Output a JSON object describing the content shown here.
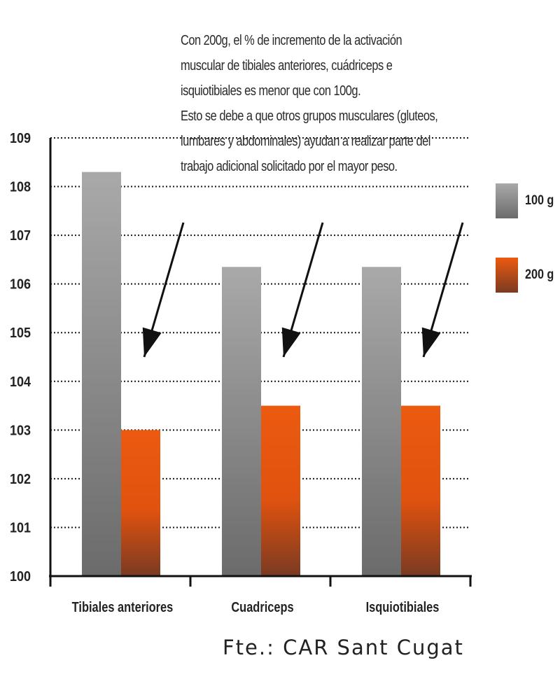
{
  "chart_data": {
    "type": "bar",
    "categories": [
      "Tibiales anteriores",
      "Cuadriceps",
      "Isquiotibiales"
    ],
    "series": [
      {
        "name": "100 g",
        "values": [
          108.3,
          106.35,
          106.35
        ],
        "color": "#8c8c8c"
      },
      {
        "name": "200 g",
        "values": [
          103.0,
          103.5,
          103.5
        ],
        "color": "#e8581a"
      }
    ],
    "ylim": [
      100,
      109
    ],
    "yticks": [
      100,
      101,
      102,
      103,
      104,
      105,
      106,
      107,
      108,
      109
    ],
    "grid": "horizontal dotted",
    "legend_position": "right",
    "annotation": [
      "Con 200g, el % de incremento de la activación",
      "muscular de tibiales anteriores, cuádriceps e",
      "isquiotibiales es menor que con 100g.",
      "Esto se debe a que otros grupos musculares (gluteos,",
      "lumbares y abdominales) ayudan a realizar parte del",
      "trabajo adicional solicitado por el mayor peso."
    ],
    "source": "Fte.: CAR Sant Cugat"
  }
}
